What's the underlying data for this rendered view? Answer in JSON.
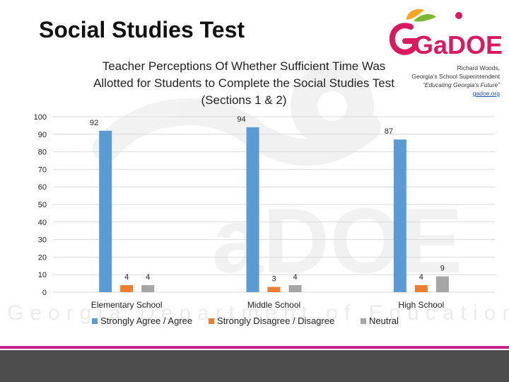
{
  "slide": {
    "title": "Social Studies Test"
  },
  "logo": {
    "brand": "GaDOE",
    "name_line": "Richard Woods,",
    "role_line": "Georgia’s School Superintendent",
    "quote_line": "“Educating Georgia’s Future”",
    "url": "gadoe.org"
  },
  "watermark": {
    "text": "Georgia Department of Education"
  },
  "colors": {
    "series_agree": "#5b9bd5",
    "series_disagree": "#ed7d31",
    "series_neutral": "#a5a5a5",
    "gridline": "#d9d9d9",
    "footer_accent": "#c8238c",
    "footer_bar": "#4d4d4d"
  },
  "chart_data": {
    "type": "bar",
    "title": "Teacher Perceptions Of Whether Sufficient Time Was Allotted for Students to Complete the Social Studies Test (Sections 1 & 2)",
    "categories": [
      "Elementary School",
      "Middle School",
      "High School"
    ],
    "series": [
      {
        "name": "Strongly Agree / Agree",
        "values": [
          92,
          94,
          87
        ],
        "color": "#5b9bd5"
      },
      {
        "name": "Strongly Disagree / Disagree",
        "values": [
          4,
          3,
          4
        ],
        "color": "#ed7d31"
      },
      {
        "name": "Neutral",
        "values": [
          4,
          4,
          9
        ],
        "color": "#a5a5a5"
      }
    ],
    "ylim": [
      0,
      100
    ],
    "yticks": [
      0,
      10,
      20,
      30,
      40,
      50,
      60,
      70,
      80,
      90,
      100
    ],
    "grid": true,
    "legend": "bottom",
    "data_labels": true
  }
}
